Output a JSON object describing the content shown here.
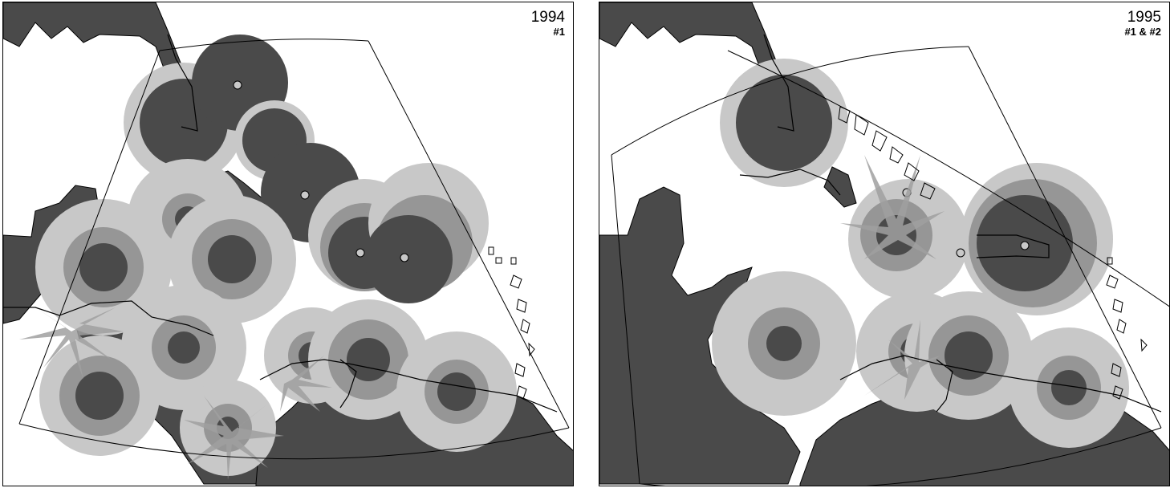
{
  "maps": [
    {
      "year": "1994",
      "subtitle": "#1"
    },
    {
      "year": "1995",
      "subtitle": "#1 & #2"
    }
  ],
  "colors": {
    "land": "#4a4a4a",
    "ring_dark": "#4a4a4a",
    "ring_mid": "#969696",
    "ring_light": "#c8c8c8",
    "station": "#c8c8c8",
    "outline": "#000000",
    "background": "#ffffff"
  },
  "legend_levels": [
    "dark",
    "medium",
    "light"
  ]
}
